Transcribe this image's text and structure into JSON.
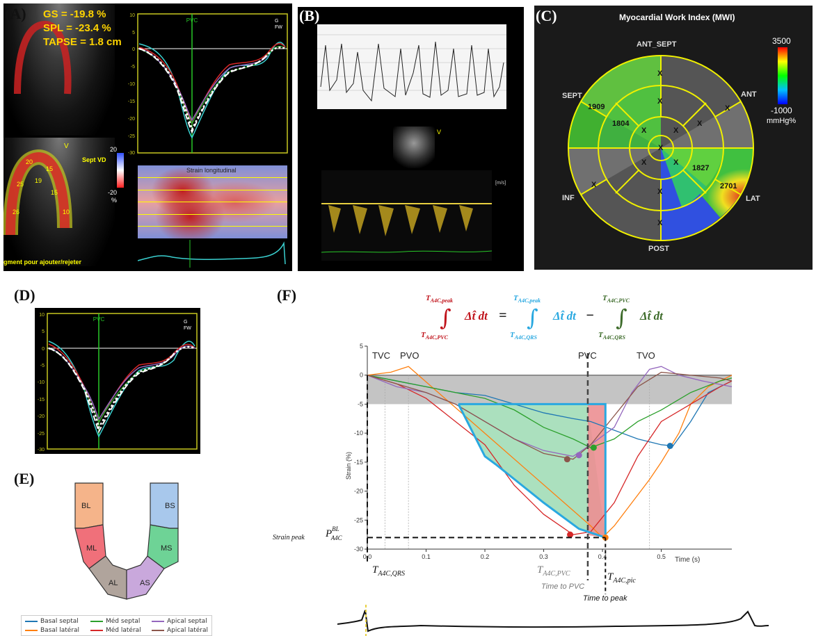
{
  "panels": {
    "a": {
      "letter": "(A)",
      "gs": "GS = -19.8 %",
      "spl": "SPL = -23.4 %",
      "tapse": "TAPSE = 1.8 cm",
      "v_marker": "V",
      "sept_vd": "Sept VD",
      "cb_max": "20",
      "cb_min": "-20",
      "cb_unit": "%",
      "pvc": "PVC",
      "legend_g": "G",
      "legend_fw": "FW",
      "strain_title": "Strain longitudinal",
      "bottom_text": "gment pour ajouter/rejeter",
      "seg_values": [
        "20",
        "15",
        "25",
        "19",
        "15",
        "26",
        "10"
      ],
      "y_ticks": [
        "10",
        "5",
        "0",
        "-5",
        "-10",
        "-15",
        "-20",
        "-25",
        "-30"
      ]
    },
    "b": {
      "letter": "(B)",
      "v_marker": "V",
      "unit": "[m/s]"
    },
    "c": {
      "letter": "(C)",
      "title": "Myocardial Work Index (MWI)",
      "cb_max": "3500",
      "cb_min": "-1000",
      "cb_unit": "mmHg%",
      "labels": {
        "ant_sept": "ANT_SEPT",
        "ant": "ANT",
        "sept": "SEPT",
        "inf": "INF",
        "lat": "LAT",
        "post": "POST"
      },
      "values": {
        "v1909": "1909",
        "v1804": "1804",
        "v1827": "1827",
        "v2701": "2701"
      },
      "x_mark": "X"
    },
    "d": {
      "letter": "(D)",
      "pvc": "PVC",
      "legend_g": "G",
      "legend_fw": "FW",
      "y_ticks": [
        "10",
        "5",
        "0",
        "-5",
        "-10",
        "-15",
        "-20",
        "-25",
        "-30"
      ]
    },
    "e": {
      "letter": "(E)",
      "segments": [
        "BL",
        "ML",
        "AL",
        "AS",
        "MS",
        "BS"
      ],
      "legend": [
        {
          "name": "Basal septal",
          "color": "#1f77b4"
        },
        {
          "name": "Basal latéral",
          "color": "#ff7f0e"
        },
        {
          "name": "Méd septal",
          "color": "#2ca02c"
        },
        {
          "name": "Méd latéral",
          "color": "#d62728"
        },
        {
          "name": "Apical septal",
          "color": "#9467bd"
        },
        {
          "name": "Apical latéral",
          "color": "#8c564b"
        }
      ]
    },
    "f": {
      "letter": "(F)",
      "eq_lhs_upper": "T",
      "eq_lhs_upper_sub": "A4C,peak",
      "eq_lhs_lower": "T",
      "eq_lhs_lower_sub": "A4C,PVC",
      "eq_term": "Δt̂ dt",
      "eq_equals": "=",
      "eq_mid_upper": "T",
      "eq_mid_upper_sub": "A4C,peak",
      "eq_mid_lower": "T",
      "eq_mid_lower_sub": "A4C,QRS",
      "eq_minus": "−",
      "eq_rhs_upper": "T",
      "eq_rhs_upper_sub": "A4C,PVC",
      "eq_rhs_lower": "T",
      "eq_rhs_lower_sub": "A4C,QRS",
      "tvc": "TVC",
      "pvo": "PVO",
      "pvc": "PVC",
      "tvo": "TVO",
      "ylabel": "Strain (%)",
      "xlabel": "Time (s)",
      "strain_peak": "Strain peak",
      "p_label": "P",
      "p_sup": "BL",
      "p_sub": "A4C",
      "t_qrs": "T",
      "t_qrs_sub": "A4C,QRS",
      "t_pvc": "T",
      "t_pvc_sub": "A4C,PVC",
      "time_to_pvc": "Time to PVC",
      "t_pic": "T",
      "t_pic_sub": "A4C,pic",
      "time_to_peak": "Time to peak"
    }
  },
  "colors": {
    "basal_septal": "#1f77b4",
    "basal_lateral": "#ff7f0e",
    "med_septal": "#2ca02c",
    "med_lateral": "#d62728",
    "apical_septal": "#9467bd",
    "apical_lateral": "#8c564b",
    "cyan_area": "#29a8e0",
    "integral_red": "#c0141c",
    "integral_blue": "#29a8e0",
    "integral_green": "#3d6b2a"
  },
  "chart_data": {
    "type": "line",
    "xlabel": "Time (s)",
    "ylabel": "Strain (%)",
    "xlim": [
      0,
      0.62
    ],
    "ylim": [
      -30,
      5
    ],
    "x_ticks": [
      0.0,
      0.1,
      0.2,
      0.3,
      0.4,
      0.5
    ],
    "y_ticks": [
      5,
      0,
      -5,
      -10,
      -15,
      -20,
      -25,
      -30
    ],
    "events": {
      "TVC": 0.03,
      "PVO": 0.07,
      "PVC": 0.375,
      "TVO": 0.48
    },
    "gray_band": [
      -5,
      0
    ],
    "series": [
      {
        "name": "Basal septal",
        "x": [
          0,
          0.05,
          0.1,
          0.15,
          0.2,
          0.25,
          0.3,
          0.35,
          0.38,
          0.42,
          0.46,
          0.5,
          0.52,
          0.55,
          0.58,
          0.62
        ],
        "y": [
          0,
          -1,
          -2,
          -3,
          -3.5,
          -5,
          -6.5,
          -7.5,
          -8,
          -9.5,
          -11,
          -12,
          -12.2,
          -8,
          -3,
          -1
        ]
      },
      {
        "name": "Basal latéral",
        "x": [
          0,
          0.04,
          0.07,
          0.38,
          0.4,
          0.42,
          0.45,
          0.48,
          0.5,
          0.53,
          0.55,
          0.58,
          0.62
        ],
        "y": [
          0,
          0.5,
          1.5,
          -26,
          -28,
          -26,
          -22,
          -18,
          -15,
          -10,
          -5,
          -2,
          0
        ]
      },
      {
        "name": "Méd septal",
        "x": [
          0,
          0.05,
          0.1,
          0.15,
          0.2,
          0.25,
          0.3,
          0.35,
          0.38,
          0.42,
          0.46,
          0.5,
          0.55,
          0.6,
          0.62
        ],
        "y": [
          0,
          -1,
          -2,
          -3,
          -4,
          -6,
          -9,
          -11,
          -12.5,
          -11,
          -8,
          -6,
          -3,
          -1,
          -0.5
        ]
      },
      {
        "name": "Méd latéral",
        "x": [
          0,
          0.05,
          0.1,
          0.15,
          0.2,
          0.25,
          0.3,
          0.35,
          0.38,
          0.42,
          0.46,
          0.5,
          0.55,
          0.6,
          0.62
        ],
        "y": [
          0,
          -1.5,
          -4,
          -8,
          -12,
          -19,
          -24,
          -27.5,
          -27,
          -22,
          -14,
          -8,
          -5,
          -2,
          -1
        ]
      },
      {
        "name": "Apical septal",
        "x": [
          0,
          0.05,
          0.1,
          0.15,
          0.2,
          0.25,
          0.3,
          0.35,
          0.38,
          0.42,
          0.45,
          0.48,
          0.5,
          0.53,
          0.57,
          0.62
        ],
        "y": [
          0,
          -2,
          -3,
          -5,
          -8,
          -11,
          -13,
          -14,
          -12,
          -9,
          -3,
          1,
          1.5,
          0,
          -1,
          -2
        ]
      },
      {
        "name": "Apical latéral",
        "x": [
          0,
          0.05,
          0.1,
          0.15,
          0.2,
          0.25,
          0.3,
          0.35,
          0.38,
          0.42,
          0.46,
          0.5,
          0.55,
          0.6,
          0.62
        ],
        "y": [
          0,
          -1.5,
          -3,
          -5,
          -8,
          -11,
          -13.5,
          -14.5,
          -12,
          -7,
          -2,
          0.5,
          0,
          -0.5,
          -1
        ]
      }
    ],
    "markers": [
      {
        "series": "Méd latéral",
        "x": 0.345,
        "y": -27.5
      },
      {
        "series": "Basal latéral",
        "x": 0.405,
        "y": -28
      },
      {
        "series": "Apical latéral",
        "x": 0.34,
        "y": -14.5
      },
      {
        "series": "Apical septal",
        "x": 0.36,
        "y": -13.8
      },
      {
        "series": "Méd septal",
        "x": 0.385,
        "y": -12.5
      },
      {
        "series": "Basal septal",
        "x": 0.515,
        "y": -12.2
      }
    ]
  }
}
